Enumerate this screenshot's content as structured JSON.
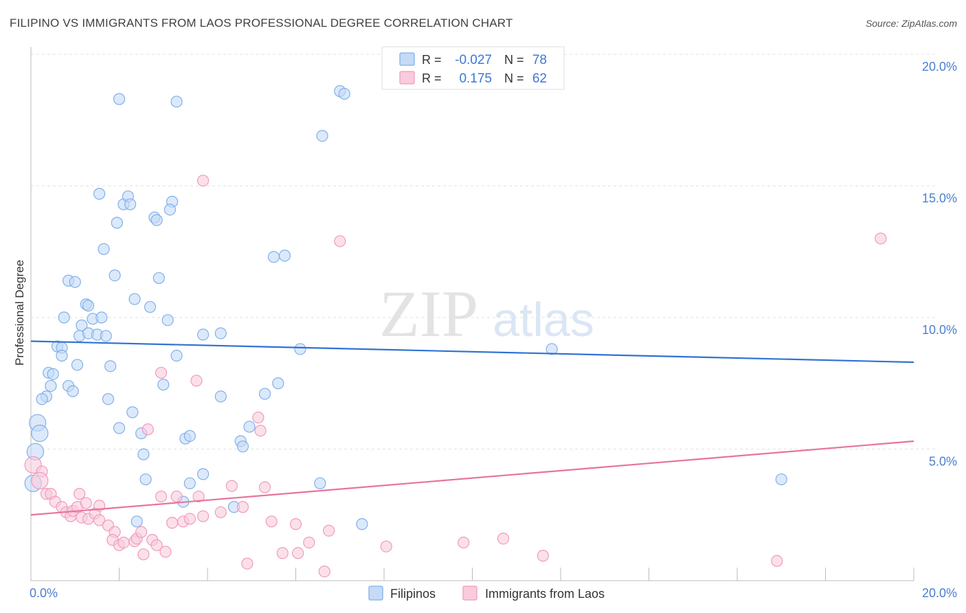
{
  "chart_data": {
    "type": "scatter",
    "title": "FILIPINO VS IMMIGRANTS FROM LAOS PROFESSIONAL DEGREE CORRELATION CHART",
    "source": "Source: ZipAtlas.com",
    "ylabel": "Professional Degree",
    "xlabel": "",
    "xlim": [
      0,
      20
    ],
    "ylim": [
      0,
      20
    ],
    "x_tick_labels": [
      "0.0%",
      "20.0%"
    ],
    "y_ticks": [
      5,
      10,
      15,
      20
    ],
    "y_tick_labels": [
      "5.0%",
      "10.0%",
      "15.0%",
      "20.0%"
    ],
    "grid": true,
    "legend": {
      "position": "top-center",
      "rows": [
        {
          "r_label": "R =",
          "r_value": "-0.027",
          "n_label": "N =",
          "n_value": "78"
        },
        {
          "r_label": "R =",
          "r_value": "0.175",
          "n_label": "N =",
          "n_value": "62"
        }
      ]
    },
    "watermark": {
      "part1": "ZIP",
      "part2": "atlas"
    },
    "series": [
      {
        "name": "Filipinos",
        "color": "#7fb0ea",
        "fill": "#c5daf6",
        "line_color": "#2f72d2",
        "trend": {
          "x": [
            0,
            20
          ],
          "y": [
            9.1,
            8.3
          ]
        },
        "points": [
          [
            2.0,
            18.3
          ],
          [
            3.3,
            18.2
          ],
          [
            7.0,
            18.6
          ],
          [
            7.1,
            18.5
          ],
          [
            6.6,
            16.9
          ],
          [
            1.55,
            14.7
          ],
          [
            2.1,
            14.3
          ],
          [
            2.2,
            14.6
          ],
          [
            2.25,
            14.3
          ],
          [
            3.2,
            14.4
          ],
          [
            3.15,
            14.1
          ],
          [
            1.95,
            13.6
          ],
          [
            2.8,
            13.8
          ],
          [
            2.85,
            13.7
          ],
          [
            1.65,
            12.6
          ],
          [
            5.5,
            12.3
          ],
          [
            5.75,
            12.35
          ],
          [
            1.9,
            11.6
          ],
          [
            2.9,
            11.5
          ],
          [
            0.85,
            11.4
          ],
          [
            1.0,
            11.35
          ],
          [
            2.35,
            10.7
          ],
          [
            1.25,
            10.5
          ],
          [
            1.3,
            10.45
          ],
          [
            2.7,
            10.4
          ],
          [
            0.75,
            10.0
          ],
          [
            1.4,
            9.95
          ],
          [
            1.6,
            10.0
          ],
          [
            1.15,
            9.7
          ],
          [
            3.1,
            9.9
          ],
          [
            1.1,
            9.3
          ],
          [
            1.3,
            9.4
          ],
          [
            1.5,
            9.35
          ],
          [
            1.7,
            9.3
          ],
          [
            3.9,
            9.35
          ],
          [
            4.3,
            9.4
          ],
          [
            0.6,
            8.9
          ],
          [
            0.7,
            8.85
          ],
          [
            0.7,
            8.55
          ],
          [
            1.05,
            8.2
          ],
          [
            1.8,
            8.15
          ],
          [
            3.3,
            8.55
          ],
          [
            6.1,
            8.8
          ],
          [
            11.8,
            8.8
          ],
          [
            0.4,
            7.9
          ],
          [
            0.5,
            7.85
          ],
          [
            0.85,
            7.4
          ],
          [
            0.45,
            7.4
          ],
          [
            0.95,
            7.2
          ],
          [
            3.0,
            7.45
          ],
          [
            5.3,
            7.1
          ],
          [
            5.6,
            7.5
          ],
          [
            0.35,
            7.0
          ],
          [
            0.25,
            6.9
          ],
          [
            1.75,
            6.9
          ],
          [
            4.3,
            7.0
          ],
          [
            2.3,
            6.4
          ],
          [
            2.0,
            5.8
          ],
          [
            0.15,
            6.0
          ],
          [
            0.2,
            5.6
          ],
          [
            2.5,
            5.6
          ],
          [
            3.5,
            5.4
          ],
          [
            3.6,
            5.5
          ],
          [
            4.75,
            5.3
          ],
          [
            4.8,
            5.1
          ],
          [
            4.95,
            5.85
          ],
          [
            0.1,
            4.9
          ],
          [
            2.55,
            4.8
          ],
          [
            2.6,
            3.85
          ],
          [
            3.6,
            3.7
          ],
          [
            3.9,
            4.05
          ],
          [
            6.55,
            3.7
          ],
          [
            17.0,
            3.85
          ],
          [
            0.05,
            3.7
          ],
          [
            3.45,
            3.0
          ],
          [
            4.6,
            2.8
          ],
          [
            2.4,
            2.25
          ],
          [
            7.5,
            2.15
          ]
        ],
        "big": [
          [
            0.1,
            4.9
          ],
          [
            0.05,
            3.7
          ],
          [
            0.2,
            5.6
          ],
          [
            0.15,
            6.0
          ]
        ]
      },
      {
        "name": "Immigrants from Laos",
        "color": "#f09bbc",
        "fill": "#f9cbdc",
        "line_color": "#e8739d",
        "trend": {
          "x": [
            0,
            20
          ],
          "y": [
            2.5,
            5.3
          ]
        },
        "points": [
          [
            3.9,
            15.2
          ],
          [
            7.0,
            12.9
          ],
          [
            19.25,
            13.0
          ],
          [
            2.95,
            7.9
          ],
          [
            3.75,
            7.6
          ],
          [
            5.15,
            6.2
          ],
          [
            5.2,
            5.7
          ],
          [
            2.65,
            5.75
          ],
          [
            0.05,
            4.4
          ],
          [
            0.25,
            4.15
          ],
          [
            0.2,
            3.8
          ],
          [
            0.35,
            3.3
          ],
          [
            0.45,
            3.3
          ],
          [
            0.55,
            3.0
          ],
          [
            0.7,
            2.8
          ],
          [
            0.8,
            2.6
          ],
          [
            0.9,
            2.45
          ],
          [
            0.95,
            2.65
          ],
          [
            1.05,
            2.8
          ],
          [
            1.15,
            2.4
          ],
          [
            1.1,
            3.3
          ],
          [
            1.3,
            2.35
          ],
          [
            1.25,
            2.95
          ],
          [
            1.45,
            2.55
          ],
          [
            1.55,
            2.85
          ],
          [
            1.55,
            2.3
          ],
          [
            1.75,
            2.1
          ],
          [
            1.9,
            1.85
          ],
          [
            1.85,
            1.55
          ],
          [
            2.0,
            1.35
          ],
          [
            2.1,
            1.45
          ],
          [
            2.35,
            1.5
          ],
          [
            2.4,
            1.6
          ],
          [
            2.5,
            1.85
          ],
          [
            2.55,
            1.0
          ],
          [
            2.75,
            1.55
          ],
          [
            2.85,
            1.35
          ],
          [
            3.05,
            1.1
          ],
          [
            3.2,
            2.2
          ],
          [
            3.3,
            3.2
          ],
          [
            3.45,
            2.25
          ],
          [
            3.6,
            2.35
          ],
          [
            3.8,
            3.2
          ],
          [
            3.9,
            2.45
          ],
          [
            4.3,
            2.6
          ],
          [
            4.55,
            3.6
          ],
          [
            4.8,
            2.8
          ],
          [
            4.9,
            0.65
          ],
          [
            5.3,
            3.55
          ],
          [
            5.45,
            2.25
          ],
          [
            5.7,
            1.05
          ],
          [
            6.0,
            2.15
          ],
          [
            6.05,
            1.05
          ],
          [
            6.3,
            1.45
          ],
          [
            6.65,
            0.35
          ],
          [
            6.75,
            1.9
          ],
          [
            8.05,
            1.3
          ],
          [
            9.8,
            1.45
          ],
          [
            10.7,
            1.6
          ],
          [
            11.6,
            0.95
          ],
          [
            16.9,
            0.75
          ],
          [
            2.95,
            3.2
          ]
        ],
        "big": [
          [
            0.05,
            4.4
          ],
          [
            0.2,
            3.8
          ]
        ]
      }
    ]
  }
}
